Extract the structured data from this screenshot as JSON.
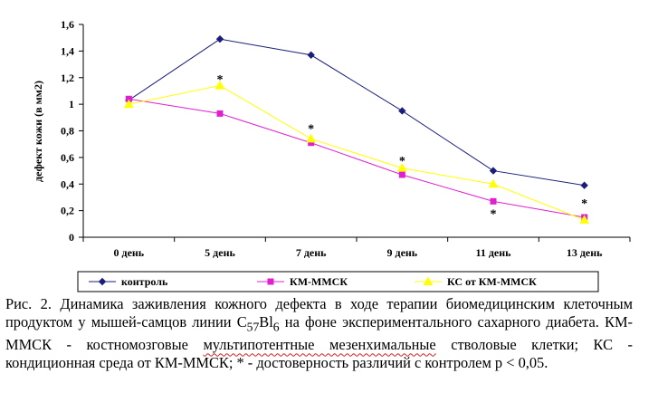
{
  "chart_data": {
    "type": "line",
    "ylabel": "дефект кожи (в мм2)",
    "xlabel": "",
    "ylim": [
      0,
      1.6
    ],
    "yticks": [
      "0",
      "0,2",
      "0,4",
      "0,6",
      "0,8",
      "1",
      "1,2",
      "1,4",
      "1,6"
    ],
    "categories": [
      "0 день",
      "5 день",
      "7 день",
      "9 день",
      "11 день",
      "13 день"
    ],
    "series": [
      {
        "name": "контроль",
        "color": "#1a1f7a",
        "marker": "diamond",
        "values": [
          1.03,
          1.49,
          1.37,
          0.95,
          0.5,
          0.39
        ]
      },
      {
        "name": "КМ-ММСК",
        "color": "#e020d0",
        "marker": "square",
        "values": [
          1.04,
          0.93,
          0.71,
          0.47,
          0.27,
          0.15
        ]
      },
      {
        "name": "КС от КМ-ММСК",
        "color": "#ffff00",
        "marker": "triangle",
        "values": [
          1.0,
          1.14,
          0.74,
          0.52,
          0.4,
          0.13
        ]
      }
    ],
    "annotations": [
      {
        "text": "*",
        "category": "5 день",
        "y": 1.19
      },
      {
        "text": "*",
        "category": "7 день",
        "y": 0.82
      },
      {
        "text": "*",
        "category": "9 день",
        "y": 0.58
      },
      {
        "text": "*",
        "category": "11 день",
        "y": 0.18
      },
      {
        "text": "*",
        "category": "13 день",
        "y": 0.26
      }
    ],
    "legend_position": "bottom",
    "grid": false
  },
  "caption": {
    "part1": "Рис. 2. Динамика заживления кожного дефекта в ходе терапии биомедицинским клеточным продуктом у мышей-самцов линии C",
    "sub1": "57",
    "part2": "Bl",
    "sub2": "6",
    "part3": " на фоне экспериментального сахарного диабета. КМ-ММСК - костномозговые ",
    "underlined": "мультипотентные мезенхимальные",
    "part4": " стволовые клетки; КС - кондиционная среда от КМ-ММСК; * - достоверность различий с контролем p < 0,05."
  }
}
